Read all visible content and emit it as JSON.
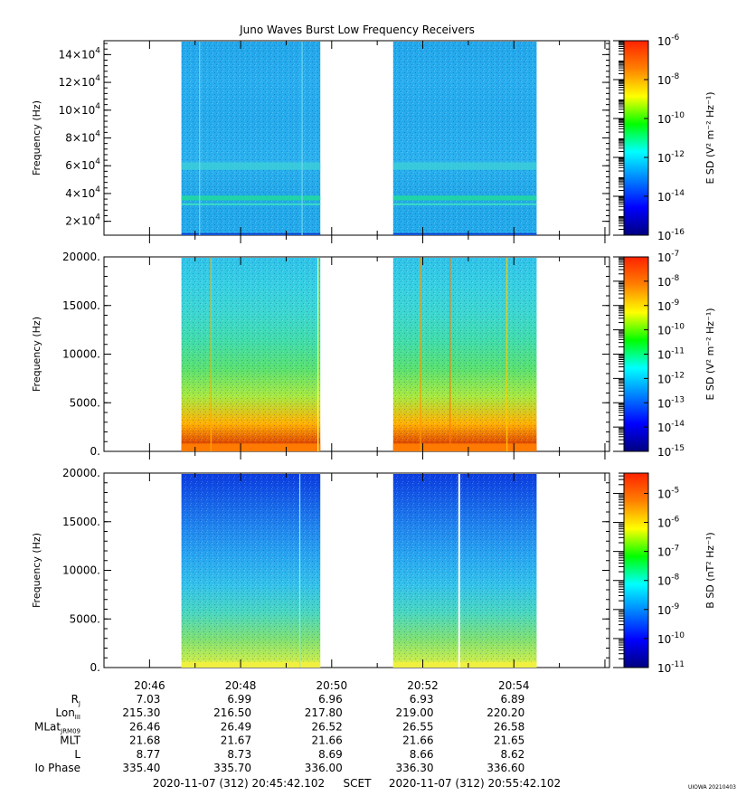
{
  "chart_data": {
    "type": "heatmap",
    "title": "Juno Waves Burst Low Frequency Receivers",
    "x_ticks": [
      "20:46",
      "20:48",
      "20:50",
      "20:52",
      "20:54"
    ],
    "x_tick_minutes": [
      46,
      48,
      50,
      52,
      54
    ],
    "x_range_minutes": [
      45.0,
      56.1
    ],
    "data_intervals_minutes": [
      [
        46.7,
        49.75
      ],
      [
        51.35,
        54.5
      ]
    ],
    "panels": [
      {
        "ylabel": "Frequency (Hz)",
        "ylim": [
          10000,
          150000
        ],
        "y_ticks": [
          {
            "value": 20000,
            "mant": "2×10",
            "exp": "4"
          },
          {
            "value": 40000,
            "mant": "4×10",
            "exp": "4"
          },
          {
            "value": 60000,
            "mant": "6×10",
            "exp": "4"
          },
          {
            "value": 80000,
            "mant": "8×10",
            "exp": "4"
          },
          {
            "value": 100000,
            "mant": "10×10",
            "exp": "4"
          },
          {
            "value": 120000,
            "mant": "12×10",
            "exp": "4"
          },
          {
            "value": 140000,
            "mant": "14×10",
            "exp": "4"
          }
        ],
        "colorbar_label": "E SD (V² m⁻² Hz⁻¹)",
        "colorbar_exponents": [
          -6,
          -16
        ],
        "colorbar_ticks": [
          {
            "exp": "-6"
          },
          {
            "exp": "-8"
          },
          {
            "exp": "-10"
          },
          {
            "exp": "-12"
          },
          {
            "exp": "-14"
          },
          {
            "exp": "-16"
          }
        ]
      },
      {
        "ylabel": "Frequency (Hz)",
        "ylim": [
          0,
          20000
        ],
        "y_ticks": [
          {
            "value": 0,
            "label": "0."
          },
          {
            "value": 5000,
            "label": "5000."
          },
          {
            "value": 10000,
            "label": "10000."
          },
          {
            "value": 15000,
            "label": "15000."
          },
          {
            "value": 20000,
            "label": "20000."
          }
        ],
        "colorbar_label": "E SD (V² m⁻² Hz⁻¹)",
        "colorbar_exponents": [
          -7,
          -15
        ],
        "colorbar_ticks": [
          {
            "exp": "-7"
          },
          {
            "exp": "-8"
          },
          {
            "exp": "-9"
          },
          {
            "exp": "-10"
          },
          {
            "exp": "-11"
          },
          {
            "exp": "-12"
          },
          {
            "exp": "-13"
          },
          {
            "exp": "-14"
          },
          {
            "exp": "-15"
          }
        ]
      },
      {
        "ylabel": "Frequency (Hz)",
        "ylim": [
          0,
          20000
        ],
        "y_ticks": [
          {
            "value": 0,
            "label": "0."
          },
          {
            "value": 5000,
            "label": "5000."
          },
          {
            "value": 10000,
            "label": "10000."
          },
          {
            "value": 15000,
            "label": "15000."
          },
          {
            "value": 20000,
            "label": "20000."
          }
        ],
        "colorbar_label": "B SD (nT² Hz⁻¹)",
        "colorbar_exponents": [
          -4.3,
          -11
        ],
        "colorbar_ticks": [
          {
            "exp": "-5"
          },
          {
            "exp": "-6"
          },
          {
            "exp": "-7"
          },
          {
            "exp": "-8"
          },
          {
            "exp": "-9"
          },
          {
            "exp": "-10"
          },
          {
            "exp": "-11"
          }
        ]
      }
    ],
    "ephemeris": {
      "rows": [
        {
          "label": "R",
          "sub": "J",
          "values": [
            "7.03",
            "6.99",
            "6.96",
            "6.93",
            "6.89"
          ]
        },
        {
          "label": "Lon",
          "sub": "III",
          "values": [
            "215.30",
            "216.50",
            "217.80",
            "219.00",
            "220.20"
          ]
        },
        {
          "label": "MLat",
          "sub": "JRM09",
          "values": [
            "26.46",
            "26.49",
            "26.52",
            "26.55",
            "26.58"
          ]
        },
        {
          "label": "MLT",
          "sub": "",
          "values": [
            "21.68",
            "21.67",
            "21.66",
            "21.66",
            "21.65"
          ]
        },
        {
          "label": "L",
          "sub": "",
          "values": [
            "8.77",
            "8.73",
            "8.69",
            "8.66",
            "8.62"
          ]
        },
        {
          "label": "Io Phase",
          "sub": "",
          "values": [
            "335.40",
            "335.70",
            "336.00",
            "336.30",
            "336.60"
          ]
        }
      ]
    },
    "footer": {
      "start": "2020-11-07 (312) 20:45:42.102",
      "scet": "SCET",
      "end": "2020-11-07 (312) 20:55:42.102"
    },
    "credit": "UIOWA 20210403"
  }
}
